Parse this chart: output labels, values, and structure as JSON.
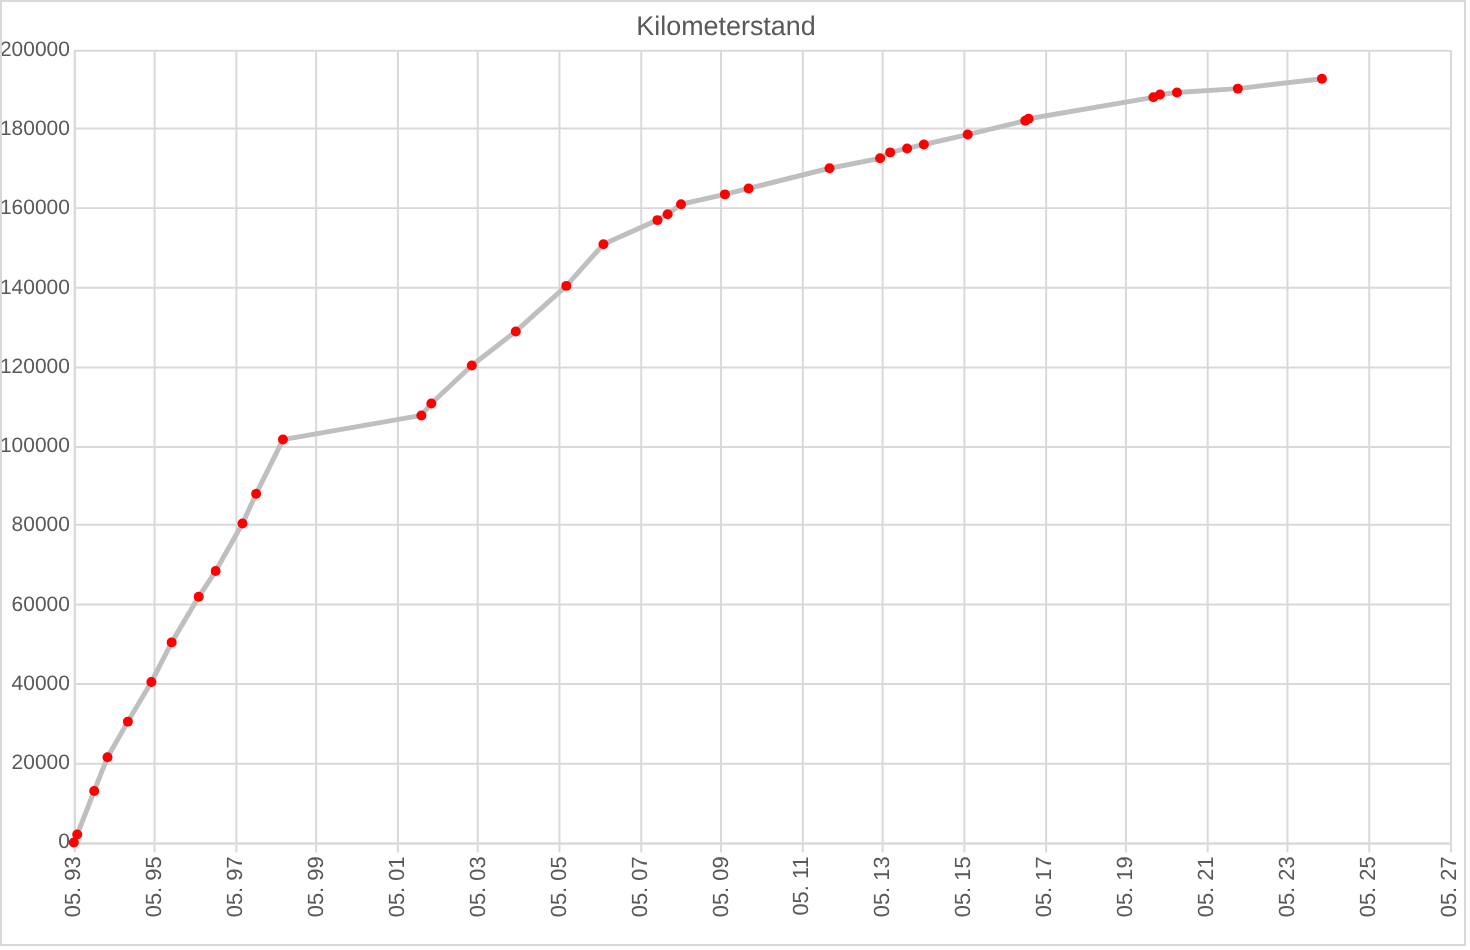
{
  "chart_data": {
    "type": "line",
    "title": "Kilometerstand",
    "x": [
      "1993-05",
      "1993-06",
      "1993-11",
      "1994-03",
      "1994-09",
      "1995-04",
      "1995-10",
      "1996-06",
      "1996-11",
      "1997-07",
      "1997-11",
      "1998-07",
      "2001-12",
      "2002-03",
      "2003-03",
      "2004-04",
      "2005-07",
      "2006-06",
      "2007-10",
      "2008-01",
      "2008-05",
      "2009-06",
      "2010-01",
      "2012-01",
      "2013-04",
      "2013-07",
      "2013-12",
      "2014-05",
      "2015-06",
      "2016-11",
      "2016-12",
      "2020-01",
      "2020-03",
      "2020-08",
      "2022-02",
      "2024-03"
    ],
    "series": [
      {
        "color": "#bfbfbf",
        "colors": [
          "#ff0000",
          "#ff0000",
          "#ff0000",
          "#ff0000",
          "#ff0000",
          "#ff0000",
          "#ff0000",
          "#ff0000",
          "#ff0000",
          "#ff0000",
          "#ff0000",
          "#ff0000",
          "#ff0000",
          "#ff0000",
          "#ff0000",
          "#ff0000",
          "#ff0000",
          "#ff0000",
          "#ff0000",
          "#ff0000",
          "#ff0000",
          "#ff0000",
          "#ff0000",
          "#ff0000",
          "#ff0000",
          "#ff0000",
          "#ff0000",
          "#ff0000",
          "#ff0000",
          "#ff0000",
          "#ff0000",
          "#ff0000",
          "#ff0000",
          "#ff0000",
          "#ff0000",
          "#ff0000"
        ],
        "values": [
          0,
          2000,
          13000,
          21500,
          30500,
          40500,
          50500,
          62000,
          68500,
          80500,
          88000,
          101700,
          107800,
          110800,
          120400,
          129000,
          140500,
          151000,
          157100,
          158600,
          161100,
          163600,
          165100,
          170200,
          172700,
          174200,
          175200,
          176200,
          178700,
          182200,
          182700,
          188100,
          188800,
          189300,
          190300,
          192800
        ]
      }
    ],
    "xlim": [
      "1993-05",
      "2027-05"
    ],
    "xticks": [
      {
        "value": "1993-05",
        "label": "05. 93"
      },
      {
        "value": "1995-05",
        "label": "05. 95"
      },
      {
        "value": "1997-05",
        "label": "05. 97"
      },
      {
        "value": "1999-05",
        "label": "05. 99"
      },
      {
        "value": "2001-05",
        "label": "05. 01"
      },
      {
        "value": "2003-05",
        "label": "05. 03"
      },
      {
        "value": "2005-05",
        "label": "05. 05"
      },
      {
        "value": "2007-05",
        "label": "05. 07"
      },
      {
        "value": "2009-05",
        "label": "05. 09"
      },
      {
        "value": "2011-05",
        "label": "05. 11"
      },
      {
        "value": "2013-05",
        "label": "05. 13"
      },
      {
        "value": "2015-05",
        "label": "05. 15"
      },
      {
        "value": "2017-05",
        "label": "05. 17"
      },
      {
        "value": "2019-05",
        "label": "05. 19"
      },
      {
        "value": "2021-05",
        "label": "05. 21"
      },
      {
        "value": "2023-05",
        "label": "05. 23"
      },
      {
        "value": "2025-05",
        "label": "05. 25"
      },
      {
        "value": "2027-05",
        "label": "05. 27"
      }
    ],
    "ylim": [
      0,
      200000
    ],
    "yticks": [
      0,
      20000,
      40000,
      60000,
      80000,
      100000,
      120000,
      140000,
      160000,
      180000,
      200000
    ],
    "grid": true,
    "marker": "circle",
    "line_style": "solid"
  }
}
